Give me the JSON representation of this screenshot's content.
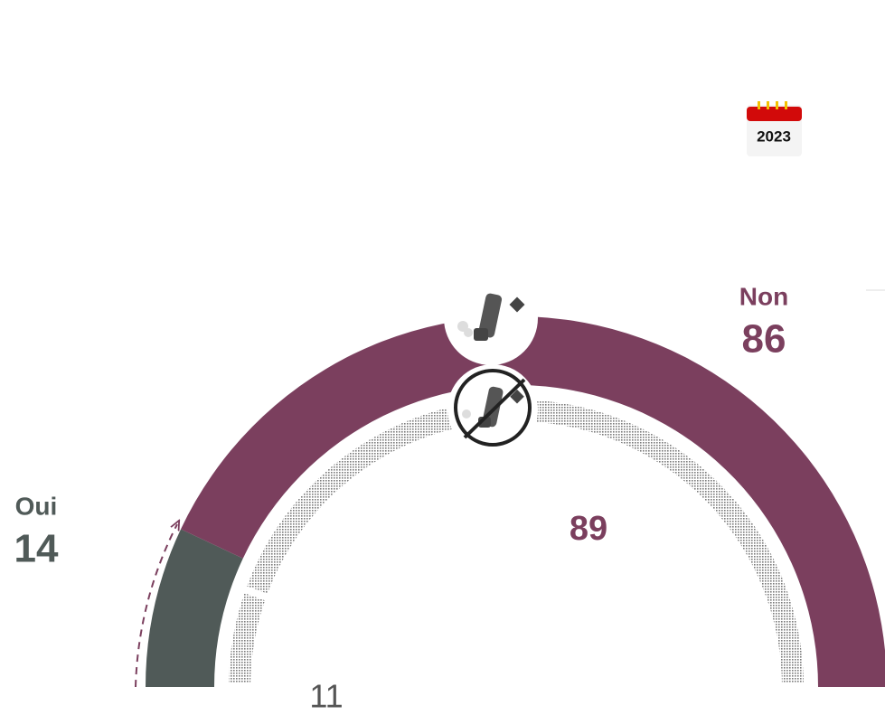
{
  "year": "2023",
  "chart_data": [
    {
      "type": "semi-donut",
      "categories": [
        "Oui",
        "Non"
      ],
      "values": [
        14,
        86
      ],
      "colors": [
        "#505a58",
        "#7b3f5e"
      ]
    },
    {
      "type": "semi-donut",
      "values": [
        11,
        89
      ],
      "colors": [
        "#7b7b7b",
        "#7b7b7b"
      ],
      "pattern": "dots"
    }
  ]
}
